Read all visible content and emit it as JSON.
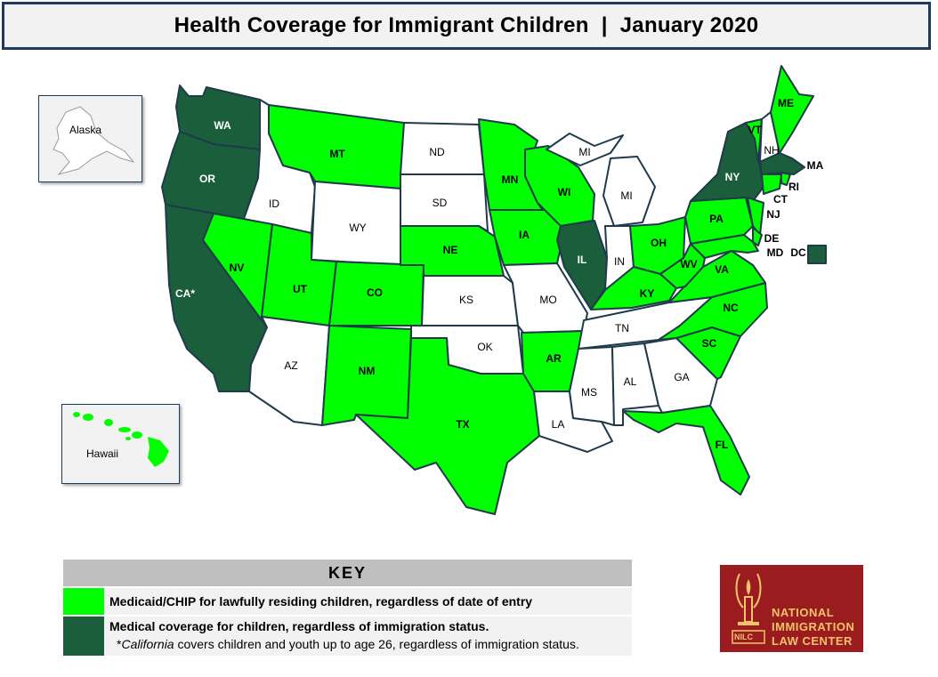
{
  "title": "Health Coverage for Immigrant Children  |  January 2020",
  "colors": {
    "lawful": "#00ff00",
    "all_status": "#1b5e3b",
    "none": "#ffffff",
    "border": "#1f3a4a"
  },
  "states": {
    "WA": "WA",
    "OR": "OR",
    "CA": "CA*",
    "ID": "ID",
    "NV": "NV",
    "MT": "MT",
    "WY": "WY",
    "UT": "UT",
    "AZ": "AZ",
    "CO": "CO",
    "NM": "NM",
    "ND": "ND",
    "SD": "SD",
    "NE": "NE",
    "KS": "KS",
    "OK": "OK",
    "TX": "TX",
    "MN": "MN",
    "IA": "IA",
    "MO": "MO",
    "AR": "AR",
    "LA": "LA",
    "WI": "WI",
    "IL": "IL",
    "MI_UP": "MI",
    "MI": "MI",
    "IN": "IN",
    "OH": "OH",
    "KY": "KY",
    "TN": "TN",
    "MS": "MS",
    "AL": "AL",
    "GA": "GA",
    "FL": "FL",
    "SC": "SC",
    "NC": "NC",
    "VA": "VA",
    "WV": "WV",
    "PA": "PA",
    "NY": "NY",
    "VT": "VT",
    "NH": "NH",
    "ME": "ME",
    "MA": "MA",
    "RI": "RI",
    "CT": "CT",
    "NJ": "NJ",
    "DE": "DE",
    "MD": "MD",
    "DC": "DC"
  },
  "insets": {
    "alaska": "Alaska",
    "hawaii": "Hawaii"
  },
  "key": {
    "heading": "KEY",
    "lawful_label": "Medicaid/CHIP for lawfully residing children, regardless of date of entry",
    "all_label": "Medical coverage for children, regardless of immigration status.",
    "note_prefix": "*",
    "note_italic": "California",
    "note_rest": " covers children and youth up to age 26, regardless of immigration status."
  },
  "logo": {
    "line1": "NATIONAL",
    "line2": "IMMIGRATION",
    "line3": "LAW CENTER",
    "badge": "NILC"
  }
}
